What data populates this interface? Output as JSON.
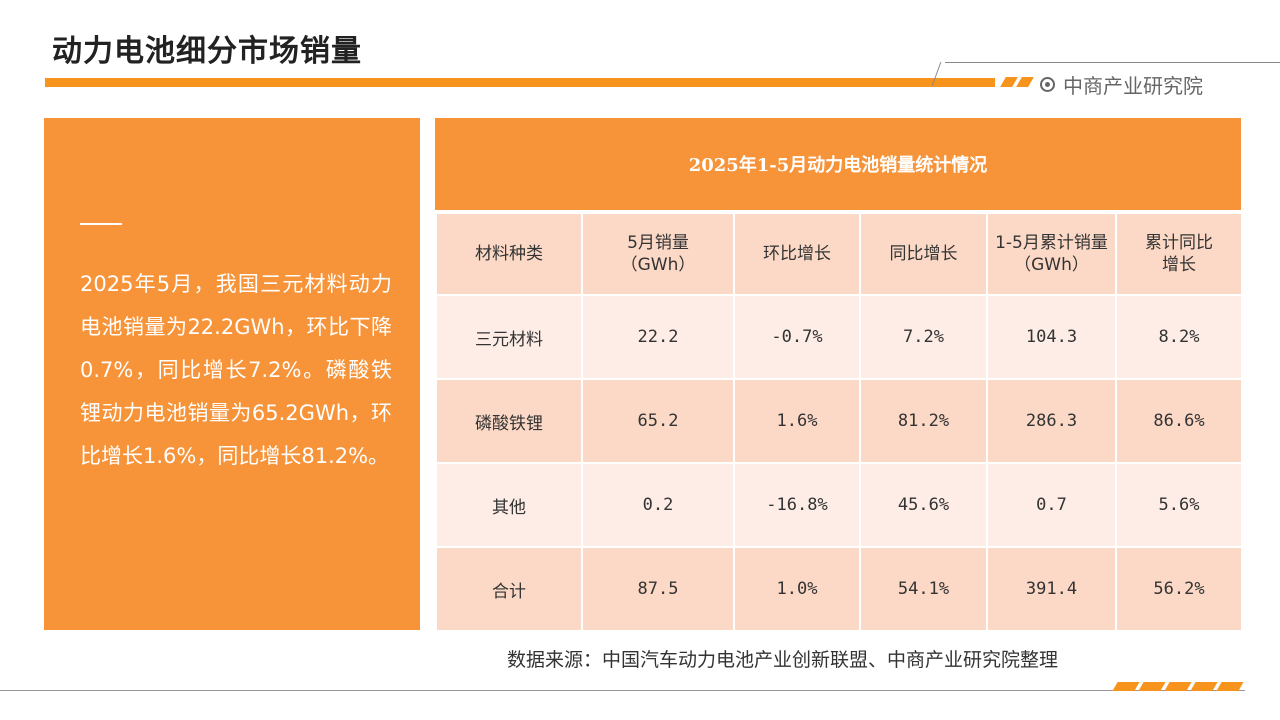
{
  "page": {
    "title": "动力电池细分市场销量",
    "brand": "中商产业研究院"
  },
  "colors": {
    "accent": "#F7943A",
    "row_light": "#FDEDE6",
    "row_dark": "#FBD9C6"
  },
  "summary": {
    "text": "2025年5月，我国三元材料动力电池销量为22.2GWh，环比下降0.7%，同比增长7.2%。磷酸铁锂动力电池销量为65.2GWh，环比增长1.6%，同比增长81.2%。"
  },
  "table": {
    "title": "2025年1-5月动力电池销量统计情况",
    "headers": [
      "材料种类",
      "5月销量\n（GWh）",
      "环比增长",
      "同比增长",
      "1-5月累计销量\n（GWh）",
      "累计同比\n增长"
    ],
    "rows": [
      [
        "三元材料",
        "22.2",
        "-0.7%",
        "7.2%",
        "104.3",
        "8.2%"
      ],
      [
        "磷酸铁锂",
        "65.2",
        "1.6%",
        "81.2%",
        "286.3",
        "86.6%"
      ],
      [
        "其他",
        "0.2",
        "-16.8%",
        "45.6%",
        "0.7",
        "5.6%"
      ],
      [
        "合计",
        "87.5",
        "1.0%",
        "54.1%",
        "391.4",
        "56.2%"
      ]
    ]
  },
  "footer": {
    "source": "数据来源：中国汽车动力电池产业创新联盟、中商产业研究院整理"
  }
}
